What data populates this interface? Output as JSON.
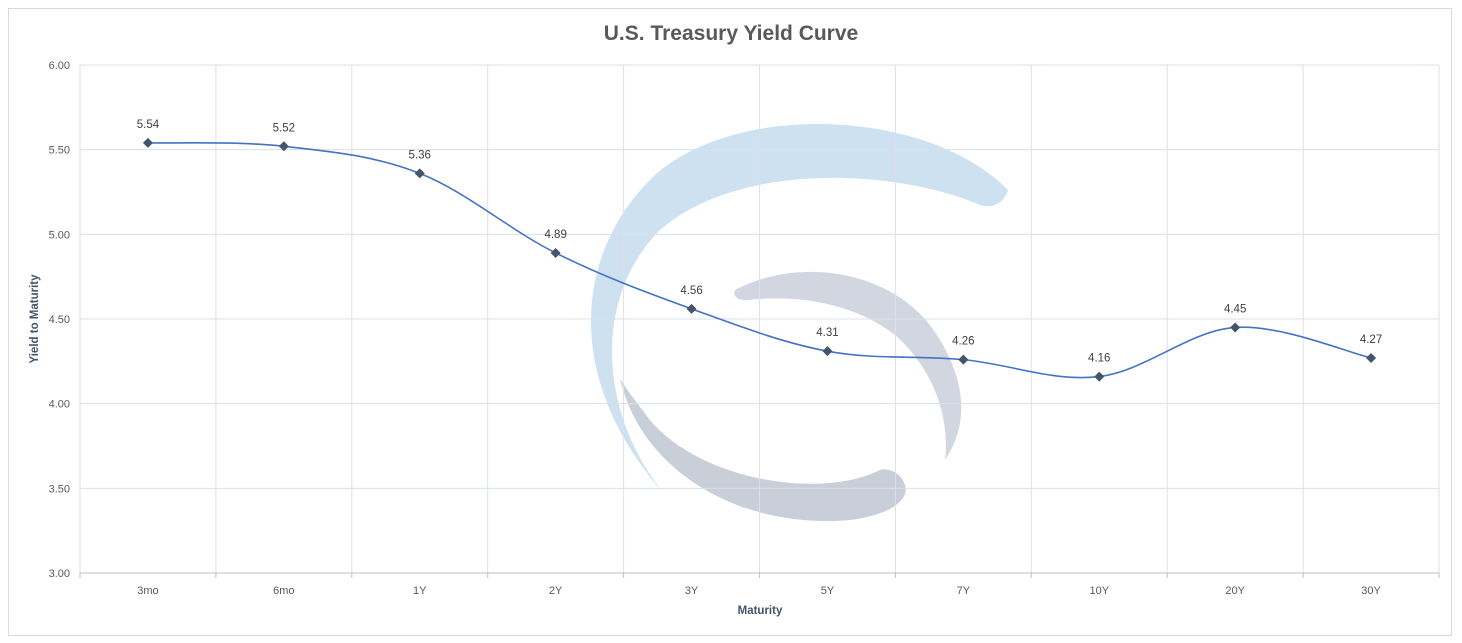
{
  "chart_data": {
    "type": "line",
    "title": "U.S. Treasury Yield Curve",
    "xlabel": "Maturity",
    "ylabel": "Yield to Maturity",
    "categories": [
      "3mo",
      "6mo",
      "1Y",
      "2Y",
      "3Y",
      "5Y",
      "7Y",
      "10Y",
      "20Y",
      "30Y"
    ],
    "series": [
      {
        "values": [
          5.54,
          5.52,
          5.36,
          4.89,
          4.56,
          4.31,
          4.26,
          4.16,
          4.45,
          4.27
        ],
        "color": "#4472c4",
        "marker_color": "#44546a",
        "marker": "diamond",
        "smooth": true
      }
    ],
    "data_labels": [
      "5.54",
      "5.52",
      "5.36",
      "4.89",
      "4.56",
      "4.31",
      "4.26",
      "4.16",
      "4.45",
      "4.27"
    ],
    "ylim": [
      3.0,
      6.0
    ],
    "yticks": [
      "3.00",
      "3.50",
      "4.00",
      "4.50",
      "5.00",
      "5.50",
      "6.00"
    ],
    "ytick_values": [
      3.0,
      3.5,
      4.0,
      4.5,
      5.0,
      5.5,
      6.0
    ],
    "grid": true,
    "gridline_color": "#d9e1ea",
    "watermark": "logo"
  }
}
